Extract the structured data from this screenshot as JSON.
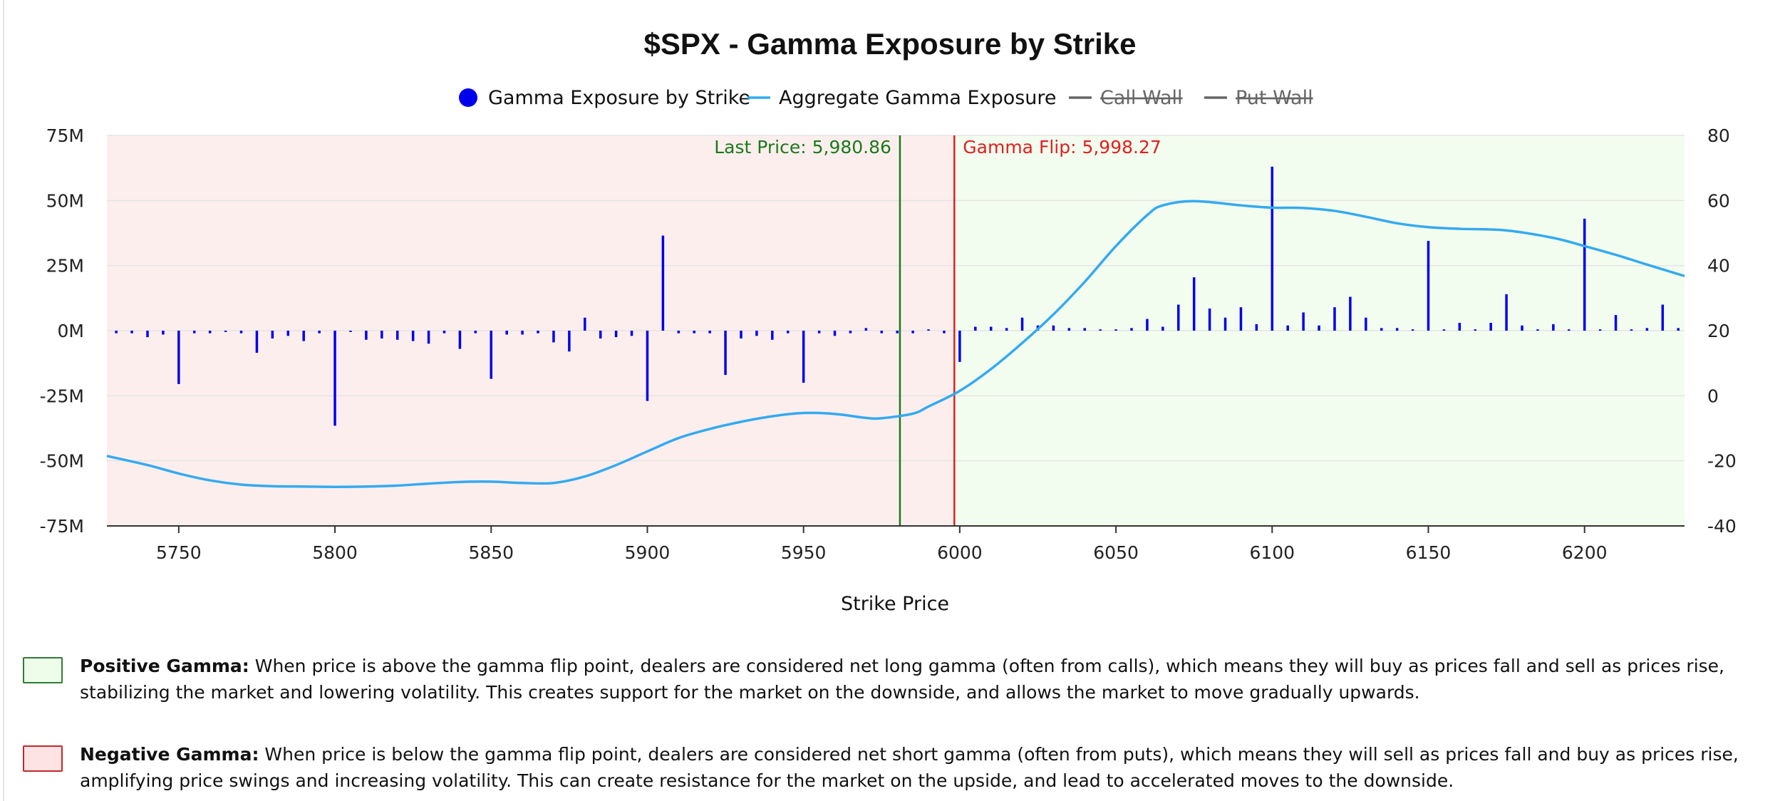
{
  "chart_data": {
    "type": "bar",
    "title": "$SPX - Gamma Exposure by Strike",
    "xlabel": "Strike Price",
    "ylabel": "",
    "x_range": [
      5727,
      6232
    ],
    "y_left_range": [
      -75000000,
      75000000
    ],
    "y_right_range": [
      -40,
      80
    ],
    "x_ticks": [
      "5750",
      "5800",
      "5850",
      "5900",
      "5950",
      "6000",
      "6050",
      "6100",
      "6150",
      "6200"
    ],
    "y_left_ticks": [
      "75M",
      "50M",
      "25M",
      "0M",
      "-25M",
      "-50M",
      "-75M"
    ],
    "y_right_ticks": [
      "80",
      "60",
      "40",
      "20",
      "0",
      "-20",
      "-40"
    ],
    "grid": true,
    "legend_position": "top-center",
    "legend": [
      {
        "label": "Gamma Exposure by Strike",
        "marker": "dot",
        "color": "#0000ee",
        "hidden": false
      },
      {
        "label": "Aggregate Gamma Exposure",
        "marker": "line",
        "color": "#33aaf0",
        "hidden": false
      },
      {
        "label": "Call Wall",
        "marker": "line",
        "color": "#666666",
        "hidden": true
      },
      {
        "label": "Put Wall",
        "marker": "line",
        "color": "#666666",
        "hidden": true
      }
    ],
    "colors": {
      "bars": "#0000ee",
      "aggregate": "#33aaf0",
      "last_price": "#1a7a1a",
      "gamma_flip": "#e02020",
      "negative_zone": "#fdeeee",
      "positive_zone": "#f3fdef"
    },
    "reference_lines": [
      {
        "label": "Last Price: 5,980.86",
        "x": 5980.86,
        "color": "#1a7a1a",
        "label_side": "left"
      },
      {
        "label": "Gamma Flip: 5,998.27",
        "x": 5998.27,
        "color": "#e02020",
        "label_side": "right"
      }
    ],
    "series": [
      {
        "name": "Gamma Exposure by Strike",
        "axis": "left",
        "points": [
          [
            5730,
            -1.0
          ],
          [
            5735,
            -1.0
          ],
          [
            5740,
            -2.5
          ],
          [
            5745,
            -1.5
          ],
          [
            5750,
            -20.5
          ],
          [
            5755,
            -1.0
          ],
          [
            5760,
            -1.0
          ],
          [
            5765,
            -0.5
          ],
          [
            5770,
            -1.0
          ],
          [
            5775,
            -8.5
          ],
          [
            5780,
            -3.0
          ],
          [
            5785,
            -2.0
          ],
          [
            5790,
            -4.0
          ],
          [
            5795,
            -1.0
          ],
          [
            5800,
            -36.5
          ],
          [
            5805,
            -0.5
          ],
          [
            5810,
            -3.5
          ],
          [
            5815,
            -3.0
          ],
          [
            5820,
            -3.5
          ],
          [
            5825,
            -4.0
          ],
          [
            5830,
            -5.0
          ],
          [
            5835,
            -1.0
          ],
          [
            5840,
            -7.0
          ],
          [
            5845,
            -1.0
          ],
          [
            5850,
            -18.5
          ],
          [
            5855,
            -1.5
          ],
          [
            5860,
            -1.5
          ],
          [
            5865,
            -1.0
          ],
          [
            5870,
            -4.5
          ],
          [
            5875,
            -8.0
          ],
          [
            5880,
            5.0
          ],
          [
            5885,
            -3.0
          ],
          [
            5890,
            -2.5
          ],
          [
            5895,
            -2.0
          ],
          [
            5900,
            -27.0
          ],
          [
            5905,
            36.5
          ],
          [
            5910,
            -1.0
          ],
          [
            5915,
            -1.0
          ],
          [
            5920,
            -1.0
          ],
          [
            5925,
            -17.0
          ],
          [
            5930,
            -3.0
          ],
          [
            5935,
            -2.0
          ],
          [
            5940,
            -3.5
          ],
          [
            5945,
            -1.0
          ],
          [
            5950,
            -20.0
          ],
          [
            5955,
            -1.0
          ],
          [
            5960,
            -2.0
          ],
          [
            5965,
            -1.0
          ],
          [
            5970,
            1.0
          ],
          [
            5975,
            -1.0
          ],
          [
            5980,
            -1.0
          ],
          [
            5985,
            -1.0
          ],
          [
            5990,
            0.5
          ],
          [
            5995,
            -1.0
          ],
          [
            6000,
            -12.0
          ],
          [
            6005,
            1.5
          ],
          [
            6010,
            1.5
          ],
          [
            6015,
            1.0
          ],
          [
            6020,
            5.0
          ],
          [
            6025,
            2.0
          ],
          [
            6030,
            2.0
          ],
          [
            6035,
            1.0
          ],
          [
            6040,
            1.0
          ],
          [
            6045,
            0.5
          ],
          [
            6050,
            0.5
          ],
          [
            6055,
            1.0
          ],
          [
            6060,
            4.5
          ],
          [
            6065,
            1.5
          ],
          [
            6070,
            10.0
          ],
          [
            6075,
            20.5
          ],
          [
            6080,
            8.5
          ],
          [
            6085,
            5.0
          ],
          [
            6090,
            9.0
          ],
          [
            6095,
            2.5
          ],
          [
            6100,
            63.0
          ],
          [
            6105,
            2.0
          ],
          [
            6110,
            7.0
          ],
          [
            6115,
            2.0
          ],
          [
            6120,
            9.0
          ],
          [
            6125,
            13.0
          ],
          [
            6130,
            5.0
          ],
          [
            6135,
            1.0
          ],
          [
            6140,
            1.0
          ],
          [
            6145,
            0.5
          ],
          [
            6150,
            34.5
          ],
          [
            6155,
            0.5
          ],
          [
            6160,
            3.0
          ],
          [
            6165,
            0.5
          ],
          [
            6170,
            3.0
          ],
          [
            6175,
            14.0
          ],
          [
            6180,
            2.0
          ],
          [
            6185,
            0.5
          ],
          [
            6190,
            2.5
          ],
          [
            6195,
            0.5
          ],
          [
            6200,
            43.0
          ],
          [
            6205,
            0.5
          ],
          [
            6210,
            6.0
          ],
          [
            6215,
            0.5
          ],
          [
            6220,
            1.0
          ],
          [
            6225,
            10.0
          ],
          [
            6230,
            1.0
          ]
        ],
        "unit": "M"
      },
      {
        "name": "Aggregate Gamma Exposure",
        "axis": "right",
        "points": [
          [
            5727,
            -18.5
          ],
          [
            5740,
            -21.3
          ],
          [
            5750,
            -23.9
          ],
          [
            5760,
            -26.0
          ],
          [
            5770,
            -27.3
          ],
          [
            5780,
            -27.8
          ],
          [
            5790,
            -27.9
          ],
          [
            5800,
            -28.0
          ],
          [
            5810,
            -27.9
          ],
          [
            5820,
            -27.6
          ],
          [
            5830,
            -27.0
          ],
          [
            5840,
            -26.5
          ],
          [
            5850,
            -26.4
          ],
          [
            5860,
            -26.8
          ],
          [
            5870,
            -26.8
          ],
          [
            5880,
            -24.8
          ],
          [
            5890,
            -21.3
          ],
          [
            5900,
            -17.1
          ],
          [
            5910,
            -13.0
          ],
          [
            5920,
            -10.2
          ],
          [
            5930,
            -8.0
          ],
          [
            5940,
            -6.3
          ],
          [
            5950,
            -5.3
          ],
          [
            5960,
            -5.6
          ],
          [
            5970,
            -6.8
          ],
          [
            5975,
            -6.9
          ],
          [
            5985,
            -5.5
          ],
          [
            5990,
            -3.3
          ],
          [
            6000,
            1.5
          ],
          [
            6010,
            8.2
          ],
          [
            6020,
            16.2
          ],
          [
            6030,
            25.0
          ],
          [
            6040,
            35.0
          ],
          [
            6050,
            46.0
          ],
          [
            6060,
            55.5
          ],
          [
            6065,
            58.5
          ],
          [
            6075,
            59.8
          ],
          [
            6090,
            58.5
          ],
          [
            6100,
            57.8
          ],
          [
            6110,
            57.7
          ],
          [
            6120,
            56.8
          ],
          [
            6130,
            55.0
          ],
          [
            6140,
            53.0
          ],
          [
            6150,
            51.8
          ],
          [
            6160,
            51.3
          ],
          [
            6175,
            50.8
          ],
          [
            6190,
            48.5
          ],
          [
            6200,
            46.0
          ],
          [
            6210,
            43.3
          ],
          [
            6220,
            40.3
          ],
          [
            6232,
            36.8
          ]
        ]
      }
    ]
  },
  "explanations": {
    "positive_title": "Positive Gamma:",
    "positive_body": " When price is above the gamma flip point, dealers are considered net long gamma (often from calls), which means they will buy as prices fall and sell as prices rise, stabilizing the market and lowering volatility. This creates support for the market on the downside, and allows the market to move gradually upwards.",
    "negative_title": "Negative Gamma:",
    "negative_body": " When price is below the gamma flip point, dealers are considered net short gamma (often from puts), which means they will sell as prices fall and buy as prices rise, amplifying price swings and increasing volatility. This can create resistance for the market on the upside, and lead to accelerated moves to the downside."
  }
}
